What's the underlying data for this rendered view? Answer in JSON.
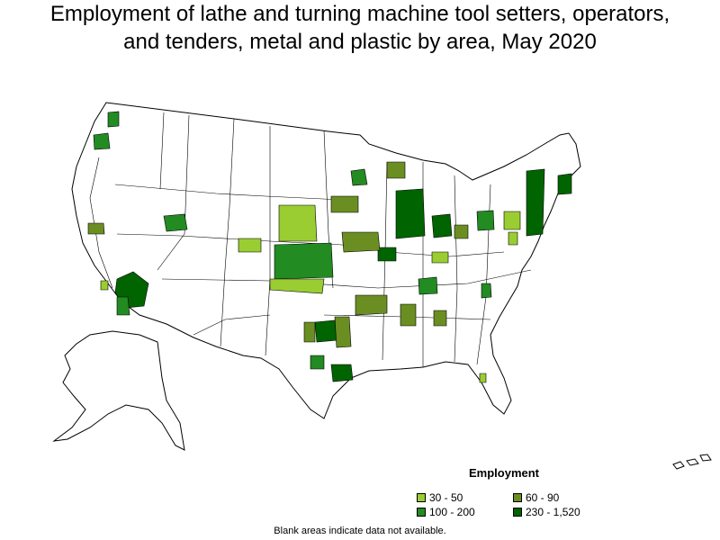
{
  "title": {
    "line1": "Employment of lathe and turning machine tool setters, operators,",
    "line2": "and tenders, metal and plastic by area, May 2020"
  },
  "legend": {
    "title": "Employment",
    "items": [
      {
        "label": "30 - 50",
        "color": "#9acd32"
      },
      {
        "label": "60 - 90",
        "color": "#6b8e23"
      },
      {
        "label": "100 - 200",
        "color": "#228b22"
      },
      {
        "label": "230 - 1,520",
        "color": "#006400"
      }
    ]
  },
  "note": "Blank areas indicate data not available.",
  "colors": {
    "outline": "#000000",
    "no_data": "#ffffff"
  }
}
